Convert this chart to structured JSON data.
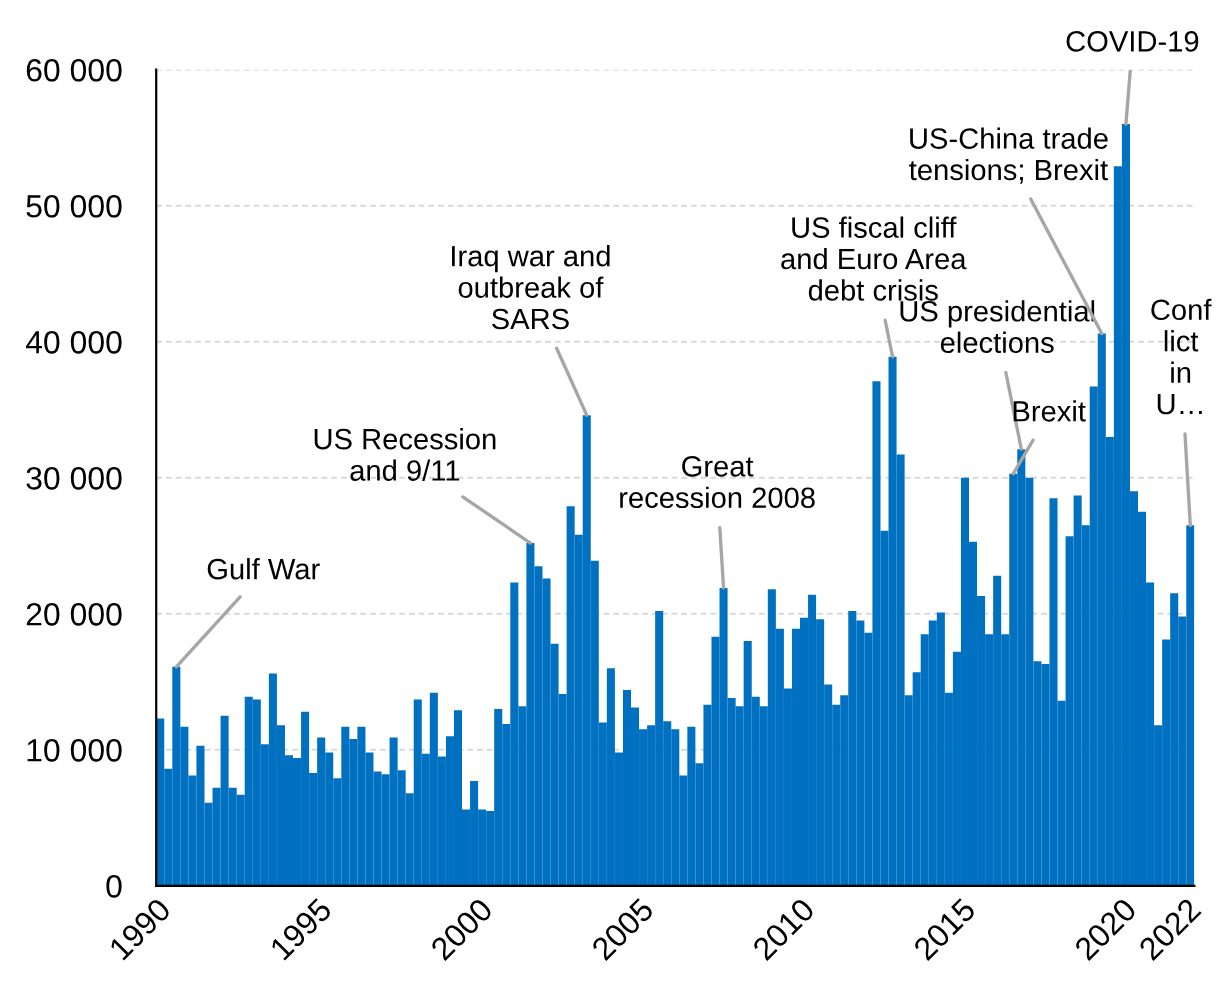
{
  "chart_data": {
    "type": "bar",
    "x": [
      1990,
      1990.25,
      1990.5,
      1990.75,
      1991,
      1991.25,
      1991.5,
      1991.75,
      1992,
      1992.25,
      1992.5,
      1992.75,
      1993,
      1993.25,
      1993.5,
      1993.75,
      1994,
      1994.25,
      1994.5,
      1994.75,
      1995,
      1995.25,
      1995.5,
      1995.75,
      1996,
      1996.25,
      1996.5,
      1996.75,
      1997,
      1997.25,
      1997.5,
      1997.75,
      1998,
      1998.25,
      1998.5,
      1998.75,
      1999,
      1999.25,
      1999.5,
      1999.75,
      2000,
      2000.25,
      2000.5,
      2000.75,
      2001,
      2001.25,
      2001.5,
      2001.75,
      2002,
      2002.25,
      2002.5,
      2002.75,
      2003,
      2003.25,
      2003.5,
      2003.75,
      2004,
      2004.25,
      2004.5,
      2004.75,
      2005,
      2005.25,
      2005.5,
      2005.75,
      2006,
      2006.25,
      2006.5,
      2006.75,
      2007,
      2007.25,
      2007.5,
      2007.75,
      2008,
      2008.25,
      2008.5,
      2008.75,
      2009,
      2009.25,
      2009.5,
      2009.75,
      2010,
      2010.25,
      2010.5,
      2010.75,
      2011,
      2011.25,
      2011.5,
      2011.75,
      2012,
      2012.25,
      2012.5,
      2012.75,
      2013,
      2013.25,
      2013.5,
      2013.75,
      2014,
      2014.25,
      2014.5,
      2014.75,
      2015,
      2015.25,
      2015.5,
      2015.75,
      2016,
      2016.25,
      2016.5,
      2016.75,
      2017,
      2017.25,
      2017.5,
      2017.75,
      2018,
      2018.25,
      2018.5,
      2018.75,
      2019,
      2019.25,
      2019.5,
      2019.75,
      2020,
      2020.25,
      2020.5,
      2020.75,
      2021,
      2021.25,
      2021.5,
      2021.75,
      2022
    ],
    "values": [
      12300,
      8600,
      16100,
      11700,
      8100,
      10300,
      6100,
      7200,
      12500,
      7200,
      6700,
      13900,
      13700,
      10400,
      15600,
      11800,
      9600,
      9400,
      12800,
      8300,
      10900,
      9800,
      7900,
      11700,
      10800,
      11700,
      9800,
      8400,
      8200,
      10900,
      8500,
      6800,
      13700,
      9700,
      14200,
      9500,
      11000,
      12900,
      5600,
      7700,
      5600,
      5500,
      13000,
      11900,
      22300,
      13200,
      25200,
      23500,
      22600,
      17800,
      14100,
      27900,
      25800,
      34600,
      23900,
      12000,
      16000,
      9800,
      14400,
      13100,
      11500,
      11800,
      20200,
      12100,
      11500,
      8100,
      11700,
      9000,
      13300,
      18300,
      21900,
      13800,
      13200,
      18000,
      13900,
      13200,
      21800,
      18900,
      14500,
      18900,
      19700,
      21400,
      19600,
      14800,
      13300,
      14000,
      20200,
      19500,
      18600,
      37100,
      26100,
      38900,
      31700,
      14000,
      15700,
      18500,
      19500,
      20100,
      14200,
      17200,
      30000,
      25300,
      21300,
      18500,
      22800,
      18500,
      30300,
      32100,
      30000,
      16500,
      16300,
      28500,
      13600,
      25700,
      28700,
      26500,
      36700,
      40600,
      33000,
      52900,
      56000,
      29000,
      27500,
      22300,
      11800,
      18100,
      21500,
      19800,
      26500
    ],
    "color": "#0070c0",
    "xlim": [
      1990,
      2022.25
    ],
    "xticks": [
      1990,
      1995,
      2000,
      2005,
      2010,
      2015,
      2020,
      2022
    ],
    "ylim": [
      0,
      60000
    ],
    "yticks": [
      0,
      {
        "value": 10000,
        "label": "10 000"
      },
      {
        "value": 20000,
        "label": "20 000"
      },
      {
        "value": 30000,
        "label": "30 000"
      },
      {
        "value": 40000,
        "label": "40 000"
      },
      {
        "value": 50000,
        "label": "50 000"
      },
      {
        "value": 60000,
        "label": "60 000"
      }
    ],
    "grid": "y",
    "annotations": [
      {
        "text": "Gulf War",
        "x": 1990.5,
        "y": 16100
      },
      {
        "text": "US Recession\nand 9/11",
        "x": 2001.5,
        "y": 25200
      },
      {
        "text": "Iraq war and\noutbreak of\nSARS",
        "x": 2003.25,
        "y": 34600
      },
      {
        "text": "Great\nrecession 2008",
        "x": 2007.5,
        "y": 21900
      },
      {
        "text": "US fiscal cliff\nand Euro Area\ndebt crisis",
        "x": 2012.75,
        "y": 38900
      },
      {
        "text": "US presidential\nelections",
        "x": 2016.75,
        "y": 32100
      },
      {
        "text": "Brexit",
        "x": 2016.5,
        "y": 30300
      },
      {
        "text": "US-China trade\ntensions; Brexit",
        "x": 2019.25,
        "y": 40600
      },
      {
        "text": "COVID-19",
        "x": 2020,
        "y": 56000
      },
      {
        "text": "Conf\nlict\nin\nU…",
        "x": 2022,
        "y": 26500
      }
    ]
  }
}
